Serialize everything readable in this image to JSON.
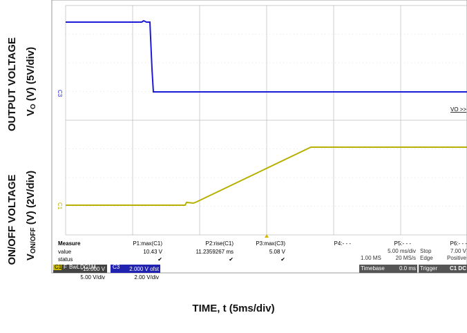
{
  "axis_labels": {
    "top_title": "OUTPUT VOLTAGE",
    "top_unit": {
      "main": "V",
      "sub": "O",
      "rest": " (V) (5V/div)"
    },
    "bottom_title": "ON/OFF VOLTAGE",
    "bottom_unit": {
      "main": "V",
      "sub": "ON/OFF",
      "rest": " (V) (2V/div)"
    },
    "time": "TIME, t (5ms/div)"
  },
  "traces": {
    "c3_marker": "C3",
    "c1_marker": "C1",
    "vo_label": "VO >>"
  },
  "measure": {
    "header": [
      "Measure",
      "P1:max(C1)",
      "P2:rise(C1)",
      "P3:max(C3)",
      "P4:- - -",
      "P5:- - -",
      "P6:- - -"
    ],
    "value": [
      "value",
      "10.43 V",
      "11.2359267 ms",
      "5.08 V"
    ],
    "status": [
      "status",
      "✔",
      "✔",
      "✔"
    ]
  },
  "c1_box": {
    "name": "C1",
    "flags": [
      "F",
      "BwL",
      "DC1M"
    ],
    "scale": "5.00 V/div",
    "offset": "-15.000 V"
  },
  "c3_box": {
    "name": "C3",
    "scale": "2.00 V/div",
    "offset": "2.000 V ofst"
  },
  "timebase": {
    "title": "Timebase",
    "delay": "0.0 ms",
    "scale": "5.00 ms/div",
    "points": "1.00 MS",
    "rate": "20 MS/s"
  },
  "trigger": {
    "title": "Trigger",
    "source": "C1 DC",
    "mode": "Stop",
    "level": "7.00 V",
    "type": "Edge",
    "slope": "Positive"
  }
}
